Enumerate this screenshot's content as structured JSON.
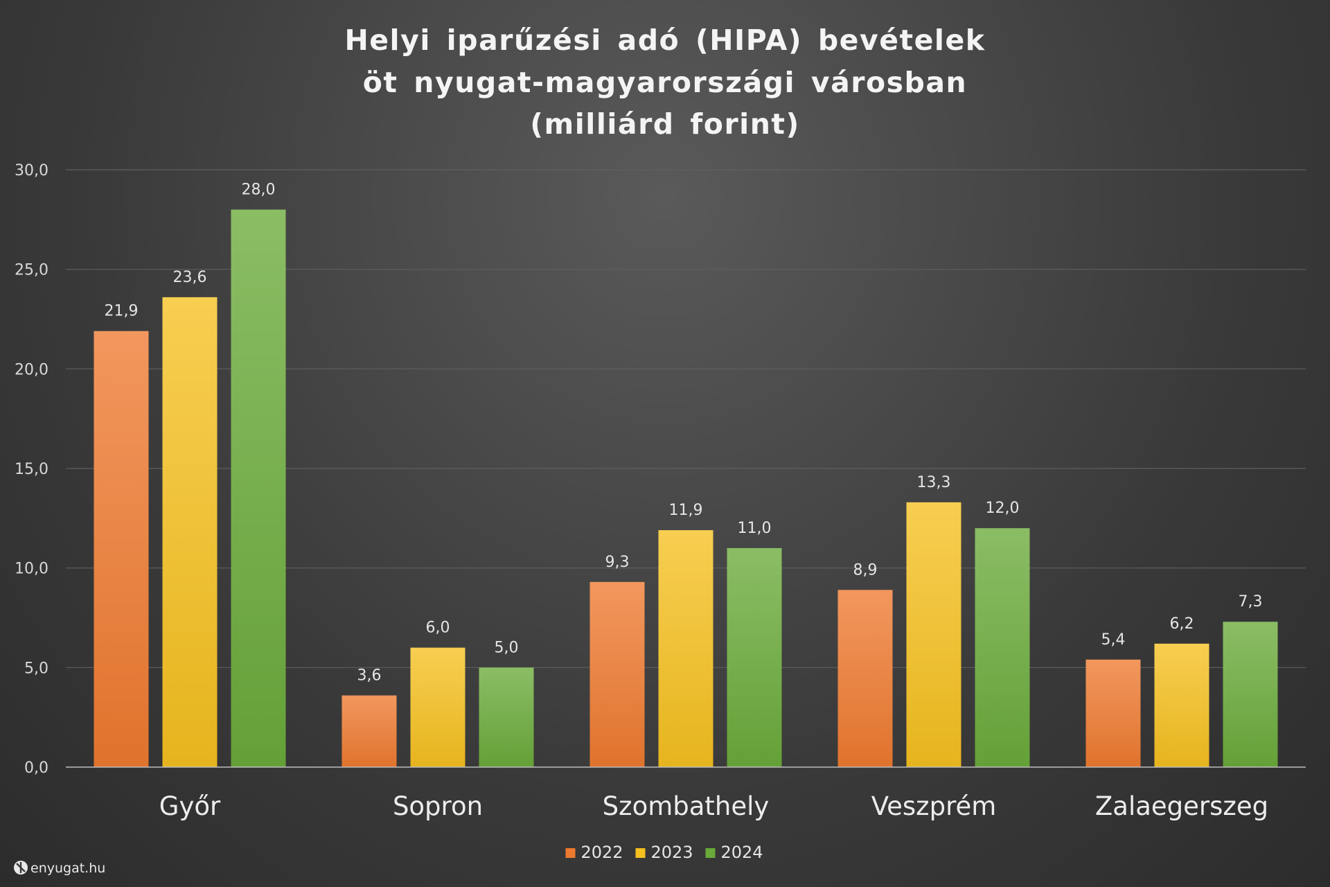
{
  "chart_data": {
    "type": "bar",
    "title_lines": [
      "Helyi iparűzési adó (HIPA) bevételek",
      "öt nyugat-magyarországi városban",
      "(milliárd forint)"
    ],
    "categories": [
      "Győr",
      "Sopron",
      "Szombathely",
      "Veszprém",
      "Zalaegerszeg"
    ],
    "series": [
      {
        "name": "2022",
        "color": "#ee7a30",
        "values": [
          21.9,
          3.6,
          9.3,
          8.9,
          5.4
        ],
        "labels": [
          "21,9",
          "3,6",
          "9,3",
          "8,9",
          "5,4"
        ]
      },
      {
        "name": "2023",
        "color": "#f5c020",
        "values": [
          23.6,
          6.0,
          11.9,
          13.3,
          6.2
        ],
        "labels": [
          "23,6",
          "6,0",
          "11,9",
          "13,3",
          "6,2"
        ]
      },
      {
        "name": "2024",
        "color": "#6aaa3a",
        "values": [
          28.0,
          5.0,
          11.0,
          12.0,
          7.3
        ],
        "labels": [
          "28,0",
          "5,0",
          "11,0",
          "12,0",
          "7,3"
        ]
      }
    ],
    "y_ticks": [
      {
        "value": 0,
        "label": "0,0"
      },
      {
        "value": 5,
        "label": "5,0"
      },
      {
        "value": 10,
        "label": "10,0"
      },
      {
        "value": 15,
        "label": "15,0"
      },
      {
        "value": 20,
        "label": "20,0"
      },
      {
        "value": 25,
        "label": "25,0"
      },
      {
        "value": 30,
        "label": "30,0"
      }
    ],
    "ylim": [
      0,
      30
    ],
    "grid": true,
    "legend_position": "bottom-center",
    "data_labels": true
  },
  "watermark": {
    "text": "enyugat.hu",
    "icon": "enyugat-logo-icon"
  }
}
